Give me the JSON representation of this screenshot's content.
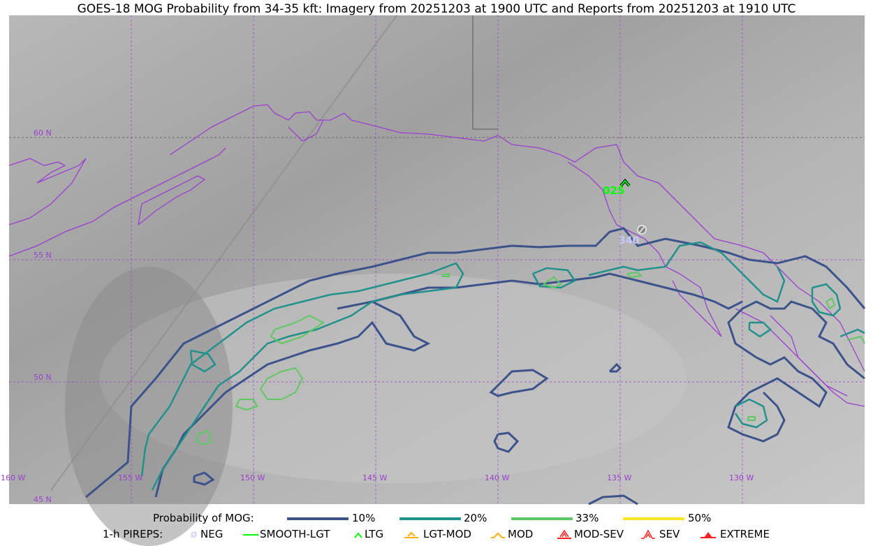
{
  "title": "GOES-18 MOG Probability from 34-35 kft: Imagery from 20251203 at 1900 UTC and Reports from 20251203 at 1910 UTC",
  "map": {
    "lat_labels": [
      "60 N",
      "55 N",
      "50 N",
      "45 N"
    ],
    "lon_labels": [
      "160 W",
      "155 W",
      "150 W",
      "145 W",
      "140 W",
      "135 W",
      "130 W"
    ],
    "coastline_color": "#9a3fd0",
    "pireps": [
      {
        "type": "LTG",
        "altitude_label": "025",
        "color": "#00ff00"
      },
      {
        "type": "NEG",
        "altitude_label": "340",
        "color": "#c8c8ff"
      }
    ]
  },
  "legend": {
    "prob_title": "Probability of MOG:",
    "prob_levels": [
      {
        "label": "10%",
        "color": "#3b528b"
      },
      {
        "label": "20%",
        "color": "#21918c"
      },
      {
        "label": "33%",
        "color": "#5ec962"
      },
      {
        "label": "50%",
        "color": "#fde725"
      }
    ],
    "pirep_title": "1-h PIREPS:",
    "pirep_types": [
      {
        "label": "NEG",
        "color": "#c8c8ff",
        "icon": "neg-circle-slash-icon"
      },
      {
        "label": "SMOOTH-LGT",
        "color": "#00ff00",
        "icon": "line-icon"
      },
      {
        "label": "LTG",
        "color": "#00ff00",
        "icon": "caret-icon"
      },
      {
        "label": "LGT-MOD",
        "color": "#ffb000",
        "icon": "caret-underline-icon"
      },
      {
        "label": "MOD",
        "color": "#ffb000",
        "icon": "caret-icon"
      },
      {
        "label": "MOD-SEV",
        "color": "#ff2020",
        "icon": "double-caret-underline-icon"
      },
      {
        "label": "SEV",
        "color": "#ff2020",
        "icon": "double-caret-icon"
      },
      {
        "label": "EXTREME",
        "color": "#ff2020",
        "icon": "filled-triangle-icon"
      }
    ]
  }
}
